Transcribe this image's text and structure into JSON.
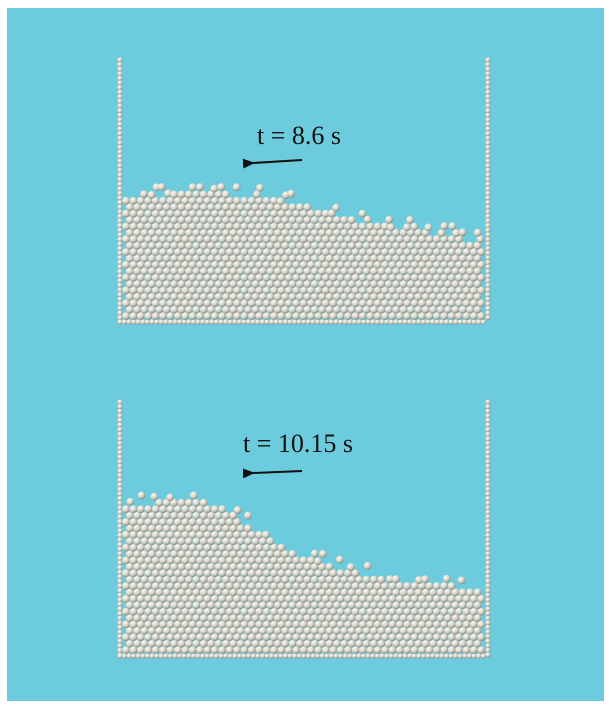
{
  "colors": {
    "background": "#6ccbdc",
    "particle": "#d9d6c9",
    "particle_highlight": "#fbfaf4",
    "particle_shadow": "#8a8f8c",
    "arrow": "#111111"
  },
  "snapshots": [
    {
      "label": "t = 8.6 s",
      "direction": "left"
    },
    {
      "label": "t = 10.15 s",
      "direction": "left"
    }
  ]
}
